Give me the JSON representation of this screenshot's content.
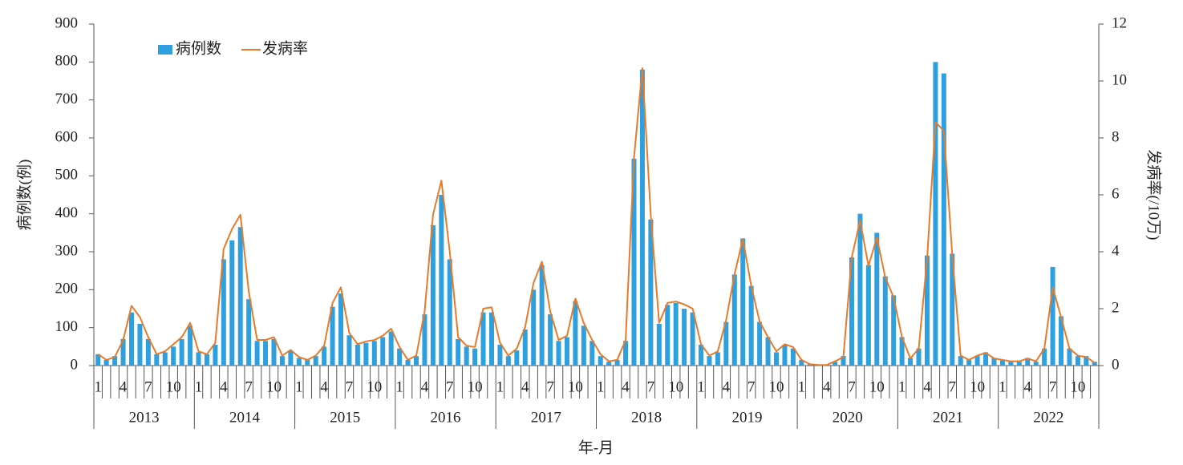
{
  "chart_data": {
    "type": "combo",
    "x_label": "年-月",
    "y_label": "病例数(例)",
    "y2_label": "发病率(/10万)",
    "categories": [
      "1",
      null,
      null,
      "4",
      null,
      null,
      "7",
      null,
      null,
      "10",
      null,
      null,
      "1",
      null,
      null,
      "4",
      null,
      null,
      "7",
      null,
      null,
      "10",
      null,
      null,
      "1",
      null,
      null,
      "4",
      null,
      null,
      "7",
      null,
      null,
      "10",
      null,
      null,
      "1",
      null,
      null,
      "4",
      null,
      null,
      "7",
      null,
      null,
      "10",
      null,
      null,
      "1",
      null,
      null,
      "4",
      null,
      null,
      "7",
      null,
      null,
      "10",
      null,
      null,
      "1",
      null,
      null,
      "4",
      null,
      null,
      "7",
      null,
      null,
      "10",
      null,
      null,
      "1",
      null,
      null,
      "4",
      null,
      null,
      "7",
      null,
      null,
      "10",
      null,
      null,
      "1",
      null,
      null,
      "4",
      null,
      null,
      "7",
      null,
      null,
      "10",
      null,
      null,
      "1",
      null,
      null,
      "4",
      null,
      null,
      "7",
      null,
      null,
      "10",
      null,
      null,
      "1",
      null,
      null,
      "4",
      null,
      null,
      "7",
      null,
      null,
      "10",
      null,
      null
    ],
    "groups": [
      "2013",
      "2014",
      "2015",
      "2016",
      "2017",
      "2018",
      "2019",
      "2020",
      "2021",
      "2022"
    ],
    "series": [
      {
        "name": "病例数",
        "type": "bar",
        "color": "#2e9fdf",
        "values": [
          30,
          15,
          25,
          70,
          140,
          110,
          70,
          30,
          35,
          50,
          70,
          105,
          35,
          30,
          55,
          280,
          330,
          365,
          175,
          65,
          65,
          70,
          25,
          40,
          20,
          15,
          25,
          50,
          155,
          190,
          80,
          55,
          60,
          65,
          75,
          90,
          45,
          15,
          25,
          135,
          370,
          450,
          280,
          70,
          50,
          45,
          140,
          140,
          55,
          25,
          40,
          95,
          200,
          265,
          135,
          65,
          75,
          170,
          105,
          65,
          25,
          10,
          15,
          65,
          545,
          780,
          385,
          110,
          160,
          165,
          150,
          140,
          55,
          25,
          35,
          115,
          240,
          335,
          210,
          115,
          75,
          35,
          55,
          45,
          15,
          5,
          2,
          2,
          10,
          25,
          285,
          400,
          265,
          350,
          235,
          185,
          75,
          20,
          45,
          290,
          800,
          770,
          295,
          25,
          15,
          25,
          35,
          20,
          15,
          10,
          10,
          20,
          10,
          45,
          260,
          130,
          45,
          25,
          25,
          10
        ]
      },
      {
        "name": "发病率",
        "type": "line",
        "axis": "y2",
        "color": "#e87b2a",
        "values": [
          0.4,
          0.2,
          0.3,
          0.9,
          2.1,
          1.7,
          1.0,
          0.4,
          0.5,
          0.75,
          1.0,
          1.5,
          0.5,
          0.4,
          0.8,
          4.1,
          4.8,
          5.3,
          2.6,
          0.9,
          0.9,
          1.0,
          0.35,
          0.55,
          0.3,
          0.2,
          0.35,
          0.7,
          2.2,
          2.75,
          1.15,
          0.75,
          0.85,
          0.9,
          1.05,
          1.3,
          0.65,
          0.2,
          0.35,
          1.9,
          5.3,
          6.5,
          4.0,
          1.0,
          0.7,
          0.65,
          2.0,
          2.05,
          0.8,
          0.35,
          0.6,
          1.35,
          2.9,
          3.65,
          1.9,
          0.9,
          1.05,
          2.35,
          1.5,
          0.9,
          0.4,
          0.15,
          0.2,
          0.9,
          7.3,
          10.45,
          5.3,
          1.5,
          2.2,
          2.25,
          2.15,
          2.0,
          0.75,
          0.35,
          0.5,
          1.6,
          3.2,
          4.45,
          2.8,
          1.55,
          1.0,
          0.5,
          0.75,
          0.65,
          0.2,
          0.05,
          0.02,
          0.02,
          0.15,
          0.3,
          3.8,
          5.1,
          3.5,
          4.5,
          3.1,
          2.4,
          1.0,
          0.25,
          0.6,
          3.75,
          8.55,
          8.25,
          3.9,
          0.35,
          0.2,
          0.35,
          0.45,
          0.25,
          0.2,
          0.15,
          0.15,
          0.25,
          0.15,
          0.6,
          2.75,
          1.7,
          0.6,
          0.35,
          0.3,
          0.1
        ]
      }
    ],
    "ylim": [
      0,
      900
    ],
    "yticks": [
      0,
      100,
      200,
      300,
      400,
      500,
      600,
      700,
      800,
      900
    ],
    "y2lim": [
      0,
      12
    ],
    "y2ticks": [
      0,
      2,
      4,
      6,
      8,
      10,
      12
    ]
  }
}
